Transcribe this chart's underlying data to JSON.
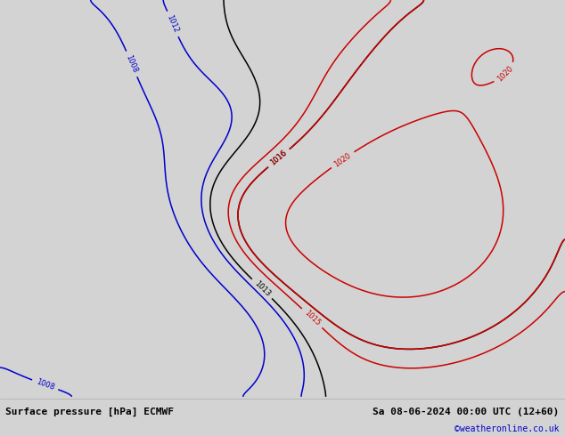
{
  "title_left": "Surface pressure [hPa] ECMWF",
  "title_right": "Sa 08-06-2024 00:00 UTC (12+60)",
  "copyright": "©weatheronline.co.uk",
  "background_color": "#d3d3d3",
  "land_color": "#aadd88",
  "ocean_color": "#d3d3d3",
  "border_color": "#888888",
  "figsize": [
    6.34,
    4.9
  ],
  "dpi": 100,
  "bottom_bar_color": "#f0f0f0",
  "contour_blue_color": "#0000cc",
  "contour_black_color": "#000000",
  "contour_red_color": "#cc0000",
  "font_color_left": "#000000",
  "font_color_right": "#000000",
  "font_color_copy": "#0000cc",
  "font_size_label": 8,
  "font_size_copy": 7,
  "extent": [
    -95,
    10,
    -70,
    15
  ],
  "map_extent_lon_min": -95,
  "map_extent_lon_max": 10,
  "map_extent_lat_min": -70,
  "map_extent_lat_max": 15
}
